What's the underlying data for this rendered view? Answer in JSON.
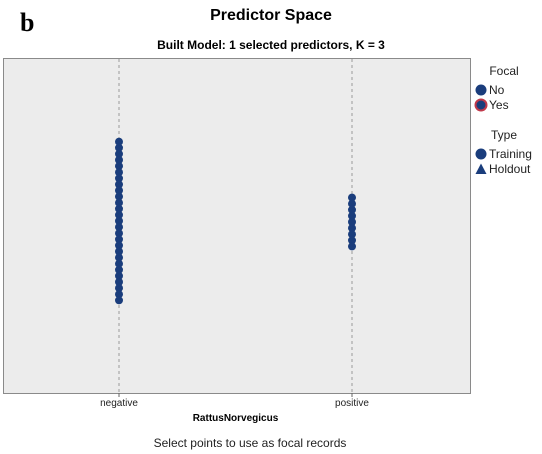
{
  "panel_letter": "b",
  "chart_data": {
    "type": "scatter",
    "title": "Predictor Space",
    "subtitle": "Built Model: 1 selected predictors, K = 3",
    "xlabel": "RattusNorvegicus",
    "categories": [
      "negative",
      "positive"
    ],
    "series": [
      {
        "name": "Training",
        "focal": "No",
        "points": [
          {
            "x": "negative",
            "count": 27
          },
          {
            "x": "positive",
            "count": 9
          }
        ]
      }
    ],
    "legend": {
      "focal": {
        "title": "Focal",
        "items": [
          {
            "label": "No",
            "marker": "circle",
            "color": "#1a3d7c"
          },
          {
            "label": "Yes",
            "marker": "circle-ring",
            "color": "#1a3d7c",
            "ring": "#c0394b"
          }
        ]
      },
      "type": {
        "title": "Type",
        "items": [
          {
            "label": "Training",
            "marker": "circle",
            "color": "#1a3d7c"
          },
          {
            "label": "Holdout",
            "marker": "triangle",
            "color": "#1a3d7c"
          }
        ]
      },
      "placement": "right"
    },
    "grid": false
  },
  "footer_text": "Select points to use as focal records",
  "colors": {
    "marker": "#1a3d7c",
    "plot_background": "#ececec",
    "guide_line": "#9a9a9a",
    "focal_ring": "#c0394b"
  }
}
